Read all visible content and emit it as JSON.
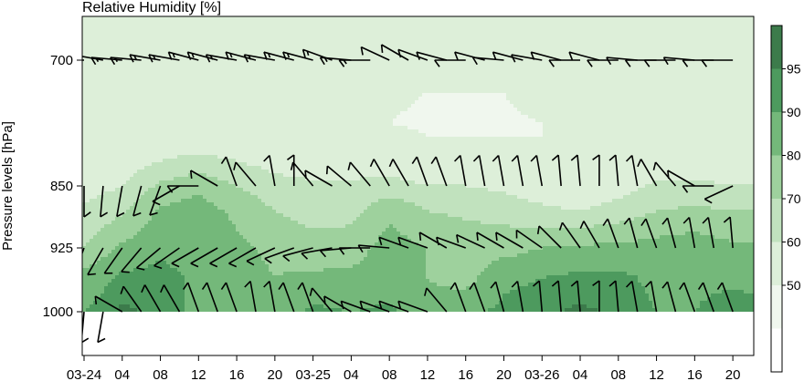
{
  "chart_data": {
    "type": "heatmap",
    "title": "Relative Humidity [%]",
    "xlabel": "",
    "ylabel": "Pressure levels [hPa]",
    "x_tick_labels": [
      "03-24",
      "04",
      "08",
      "12",
      "16",
      "20",
      "03-25",
      "04",
      "08",
      "12",
      "16",
      "20",
      "03-26",
      "04",
      "08",
      "12",
      "16",
      "20"
    ],
    "x_ticks_hours": [
      0,
      4,
      8,
      12,
      16,
      20,
      24,
      28,
      32,
      36,
      40,
      44,
      48,
      52,
      56,
      60,
      64,
      68
    ],
    "xlim_hours": [
      0,
      70
    ],
    "y_tick_labels": [
      "700",
      "850",
      "925",
      "1000"
    ],
    "y_ticks": [
      700,
      850,
      925,
      1000
    ],
    "ylim": [
      1050,
      640
    ],
    "colorbar": {
      "levels": [
        50,
        60,
        70,
        80,
        90,
        95
      ],
      "labels": [
        "50",
        "60",
        "70",
        "80",
        "90",
        "95"
      ],
      "colors": [
        "#ffffff",
        "#f0f7ee",
        "#ddefd9",
        "#c1e2be",
        "#9ed19d",
        "#74b87a",
        "#4d9a5e",
        "#3c7b4b"
      ]
    },
    "rh_profiles": {
      "levels_hPa": [
        650,
        700,
        775,
        820,
        850,
        880,
        925,
        960,
        1000
      ],
      "times_hours": [
        0,
        4,
        8,
        12,
        16,
        20,
        24,
        28,
        32,
        36,
        40,
        44,
        48,
        52,
        56,
        60,
        64,
        68,
        70
      ],
      "values": [
        [
          55,
          56,
          52,
          50,
          55,
          62,
          70,
          84,
          90
        ],
        [
          60,
          60,
          53,
          54,
          60,
          68,
          82,
          92,
          96
        ],
        [
          57,
          56,
          52,
          60,
          72,
          82,
          88,
          93,
          94
        ],
        [
          54,
          54,
          52,
          62,
          78,
          84,
          86,
          88,
          88
        ],
        [
          53,
          54,
          52,
          60,
          70,
          78,
          82,
          84,
          86
        ],
        [
          52,
          54,
          51,
          56,
          64,
          70,
          78,
          80,
          84
        ],
        [
          52,
          53,
          51,
          54,
          62,
          66,
          74,
          82,
          92
        ],
        [
          51,
          53,
          50,
          54,
          62,
          66,
          76,
          82,
          90
        ],
        [
          52,
          52,
          50,
          54,
          64,
          78,
          84,
          84,
          92
        ],
        [
          52,
          51,
          49,
          52,
          60,
          70,
          80,
          80,
          82
        ],
        [
          51,
          51,
          49,
          52,
          60,
          68,
          76,
          76,
          88
        ],
        [
          51,
          51,
          49,
          52,
          58,
          66,
          76,
          88,
          92
        ],
        [
          53,
          55,
          50,
          50,
          54,
          62,
          80,
          90,
          94
        ],
        [
          56,
          58,
          52,
          50,
          52,
          60,
          82,
          92,
          96
        ],
        [
          58,
          58,
          55,
          52,
          56,
          64,
          82,
          92,
          94
        ],
        [
          58,
          58,
          56,
          54,
          62,
          70,
          84,
          88,
          90
        ],
        [
          58,
          58,
          56,
          54,
          62,
          72,
          86,
          88,
          90
        ],
        [
          56,
          56,
          55,
          54,
          60,
          70,
          82,
          88,
          94
        ],
        [
          56,
          56,
          55,
          54,
          60,
          70,
          82,
          88,
          92
        ]
      ]
    },
    "wind_barbs": {
      "times_hours": [
        0,
        2,
        4,
        6,
        8,
        10,
        12,
        14,
        16,
        18,
        20,
        22,
        24,
        26,
        28,
        30,
        32,
        34,
        36,
        38,
        40,
        42,
        44,
        46,
        48,
        50,
        52,
        54,
        56,
        58,
        60,
        62,
        64,
        66,
        68
      ],
      "levels_hPa": [
        700,
        850,
        925,
        1000
      ],
      "direction_deg": [
        [
          270,
          280,
          275,
          275,
          280,
          280,
          285,
          285,
          280,
          285,
          280,
          285,
          285,
          290,
          275,
          270,
          295,
          300,
          290,
          285,
          270,
          285,
          275,
          285,
          280,
          285,
          270,
          285,
          270,
          275,
          270,
          270,
          275,
          270,
          270
        ],
        [
          180,
          185,
          190,
          195,
          200,
          240,
          270,
          300,
          340,
          320,
          350,
          360,
          320,
          300,
          310,
          320,
          330,
          330,
          340,
          340,
          350,
          350,
          350,
          350,
          350,
          355,
          355,
          360,
          355,
          350,
          330,
          320,
          300,
          270,
          245
        ],
        [
          200,
          210,
          215,
          220,
          230,
          235,
          240,
          240,
          240,
          240,
          245,
          250,
          255,
          260,
          265,
          270,
          275,
          290,
          290,
          300,
          290,
          295,
          300,
          300,
          305,
          315,
          325,
          330,
          340,
          345,
          340,
          345,
          350,
          350,
          355
        ],
        [
          185,
          190,
          300,
          325,
          330,
          330,
          340,
          340,
          340,
          350,
          350,
          340,
          340,
          320,
          300,
          290,
          290,
          290,
          290,
          320,
          340,
          340,
          345,
          350,
          355,
          355,
          355,
          360,
          355,
          350,
          350,
          345,
          340,
          340,
          340
        ]
      ],
      "speed_kt": [
        [
          10,
          15,
          15,
          15,
          15,
          15,
          15,
          15,
          15,
          15,
          15,
          15,
          15,
          15,
          15,
          15,
          10,
          10,
          10,
          10,
          10,
          10,
          10,
          10,
          10,
          10,
          10,
          10,
          10,
          10,
          10,
          10,
          10,
          10,
          10
        ],
        [
          10,
          10,
          10,
          10,
          10,
          10,
          10,
          10,
          10,
          10,
          10,
          10,
          10,
          10,
          10,
          10,
          10,
          10,
          10,
          10,
          10,
          10,
          10,
          10,
          10,
          10,
          10,
          10,
          10,
          10,
          10,
          10,
          10,
          10,
          10
        ],
        [
          10,
          10,
          10,
          10,
          10,
          10,
          10,
          10,
          10,
          10,
          10,
          10,
          10,
          10,
          10,
          10,
          10,
          10,
          10,
          10,
          10,
          10,
          10,
          10,
          10,
          10,
          10,
          10,
          10,
          10,
          10,
          10,
          10,
          10,
          10
        ],
        [
          10,
          10,
          10,
          10,
          10,
          10,
          10,
          10,
          10,
          10,
          10,
          10,
          10,
          10,
          10,
          10,
          10,
          10,
          10,
          10,
          10,
          10,
          10,
          10,
          10,
          10,
          10,
          10,
          10,
          10,
          10,
          10,
          10,
          10,
          10
        ]
      ]
    }
  }
}
